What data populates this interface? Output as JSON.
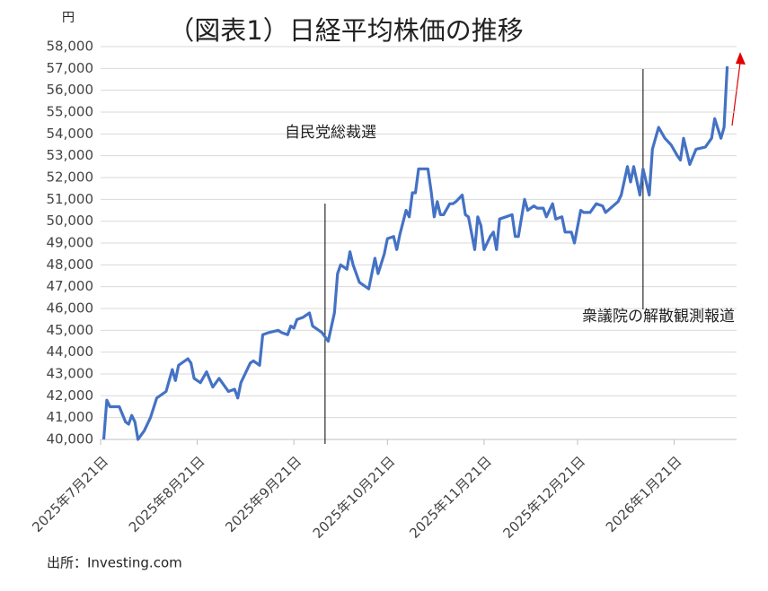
{
  "chart_data": {
    "type": "line",
    "title": "（図表1）日経平均株価の推移",
    "y_unit": "円",
    "source": "出所：Investing.com",
    "xlim": [
      "2025-07-21",
      "2026-02-10"
    ],
    "xticks": [
      {
        "value": "2025-07-21",
        "label": "2025年7月21日"
      },
      {
        "value": "2025-08-21",
        "label": "2025年8月21日"
      },
      {
        "value": "2025-09-21",
        "label": "2025年9月21日"
      },
      {
        "value": "2025-10-21",
        "label": "2025年10月21日"
      },
      {
        "value": "2025-11-21",
        "label": "2025年11月21日"
      },
      {
        "value": "2025-12-21",
        "label": "2025年12月21日"
      },
      {
        "value": "2026-01-21",
        "label": "2026年1月21日"
      }
    ],
    "ylim": [
      40000,
      58000
    ],
    "yticks": [
      {
        "value": 40000,
        "label": "40,000"
      },
      {
        "value": 41000,
        "label": "41,000"
      },
      {
        "value": 42000,
        "label": "42,000"
      },
      {
        "value": 43000,
        "label": "43,000"
      },
      {
        "value": 44000,
        "label": "44,000"
      },
      {
        "value": 45000,
        "label": "45,000"
      },
      {
        "value": 46000,
        "label": "46,000"
      },
      {
        "value": 47000,
        "label": "47,000"
      },
      {
        "value": 48000,
        "label": "48,000"
      },
      {
        "value": 49000,
        "label": "49,000"
      },
      {
        "value": 50000,
        "label": "50,000"
      },
      {
        "value": 51000,
        "label": "51,000"
      },
      {
        "value": 52000,
        "label": "52,000"
      },
      {
        "value": 53000,
        "label": "53,000"
      },
      {
        "value": 54000,
        "label": "54,000"
      },
      {
        "value": 55000,
        "label": "55,000"
      },
      {
        "value": 56000,
        "label": "56,000"
      },
      {
        "value": 57000,
        "label": "57,000"
      },
      {
        "value": 58000,
        "label": "58,000"
      }
    ],
    "grid": true,
    "x": [
      "2025-07-22",
      "2025-07-23",
      "2025-07-24",
      "2025-07-27",
      "2025-07-29",
      "2025-07-30",
      "2025-07-31",
      "2025-08-01",
      "2025-08-02",
      "2025-08-04",
      "2025-08-06",
      "2025-08-08",
      "2025-08-11",
      "2025-08-13",
      "2025-08-14",
      "2025-08-15",
      "2025-08-18",
      "2025-08-19",
      "2025-08-20",
      "2025-08-22",
      "2025-08-24",
      "2025-08-26",
      "2025-08-28",
      "2025-08-31",
      "2025-09-02",
      "2025-09-03",
      "2025-09-04",
      "2025-09-07",
      "2025-09-08",
      "2025-09-10",
      "2025-09-11",
      "2025-09-13",
      "2025-09-16",
      "2025-09-17",
      "2025-09-19",
      "2025-09-20",
      "2025-09-21",
      "2025-09-22",
      "2025-09-24",
      "2025-09-26",
      "2025-09-27",
      "2025-09-29",
      "2025-09-30",
      "2025-10-02",
      "2025-10-04",
      "2025-10-05",
      "2025-10-06",
      "2025-10-08",
      "2025-10-09",
      "2025-10-10",
      "2025-10-12",
      "2025-10-15",
      "2025-10-17",
      "2025-10-18",
      "2025-10-20",
      "2025-10-21",
      "2025-10-23",
      "2025-10-24",
      "2025-10-25",
      "2025-10-27",
      "2025-10-28",
      "2025-10-29",
      "2025-10-30",
      "2025-10-31",
      "2025-11-03",
      "2025-11-04",
      "2025-11-05",
      "2025-11-06",
      "2025-11-07",
      "2025-11-08",
      "2025-11-10",
      "2025-11-11",
      "2025-11-12",
      "2025-11-14",
      "2025-11-15",
      "2025-11-16",
      "2025-11-18",
      "2025-11-19",
      "2025-11-20",
      "2025-11-21",
      "2025-11-23",
      "2025-11-24",
      "2025-11-25",
      "2025-11-26",
      "2025-11-28",
      "2025-11-30",
      "2025-12-01",
      "2025-12-02",
      "2025-12-04",
      "2025-12-05",
      "2025-12-07",
      "2025-12-08",
      "2025-12-10",
      "2025-12-11",
      "2025-12-13",
      "2025-12-14",
      "2025-12-16",
      "2025-12-17",
      "2025-12-19",
      "2025-12-20",
      "2025-12-22",
      "2025-12-23",
      "2025-12-25",
      "2025-12-27",
      "2025-12-29",
      "2025-12-30",
      "2026-01-03",
      "2026-01-04",
      "2026-01-06",
      "2026-01-07",
      "2026-01-08",
      "2026-01-10",
      "2026-01-11",
      "2026-01-12",
      "2026-01-13",
      "2026-01-14",
      "2026-01-16",
      "2026-01-18",
      "2026-01-20",
      "2026-01-22",
      "2026-01-23",
      "2026-01-24",
      "2026-01-26",
      "2026-01-28",
      "2026-01-31",
      "2026-02-02",
      "2026-02-03",
      "2026-02-05",
      "2026-02-06",
      "2026-02-07"
    ],
    "series": [
      {
        "name": "日経平均株価",
        "color": "#4472c4",
        "values": [
          40000,
          41800,
          41500,
          41500,
          40800,
          40700,
          41100,
          40800,
          40000,
          40400,
          41000,
          41900,
          42200,
          43200,
          42700,
          43400,
          43700,
          43500,
          42800,
          42600,
          43100,
          42400,
          42800,
          42200,
          42300,
          41900,
          42600,
          43500,
          43600,
          43400,
          44800,
          44900,
          45000,
          44900,
          44800,
          45200,
          45100,
          45500,
          45600,
          45800,
          45200,
          45000,
          44900,
          44500,
          45800,
          47600,
          48000,
          47800,
          48600,
          48000,
          47200,
          46900,
          48300,
          47600,
          48500,
          49200,
          49300,
          48700,
          49400,
          50500,
          50200,
          51300,
          51300,
          52400,
          52400,
          51400,
          50200,
          50900,
          50300,
          50300,
          50800,
          50800,
          50900,
          51200,
          50300,
          50200,
          48700,
          50200,
          49800,
          48700,
          49300,
          49500,
          48700,
          50100,
          50200,
          50300,
          49300,
          49300,
          51000,
          50500,
          50700,
          50600,
          50600,
          50200,
          50800,
          50100,
          50200,
          49500,
          49500,
          49000,
          50500,
          50400,
          50400,
          50800,
          50700,
          50400,
          50900,
          51200,
          52500,
          51800,
          52500,
          51200,
          52400,
          51800,
          51200,
          53300,
          54300,
          53800,
          53500,
          53000,
          52800,
          53800,
          52600,
          53300,
          53400,
          53800,
          54700,
          53800,
          54300,
          57100
        ]
      }
    ],
    "annotations": [
      {
        "x": "2025-10-01",
        "text": "自民党総裁選"
      },
      {
        "x": "2026-01-11",
        "text": "衆議院の解散観測報道"
      }
    ]
  }
}
